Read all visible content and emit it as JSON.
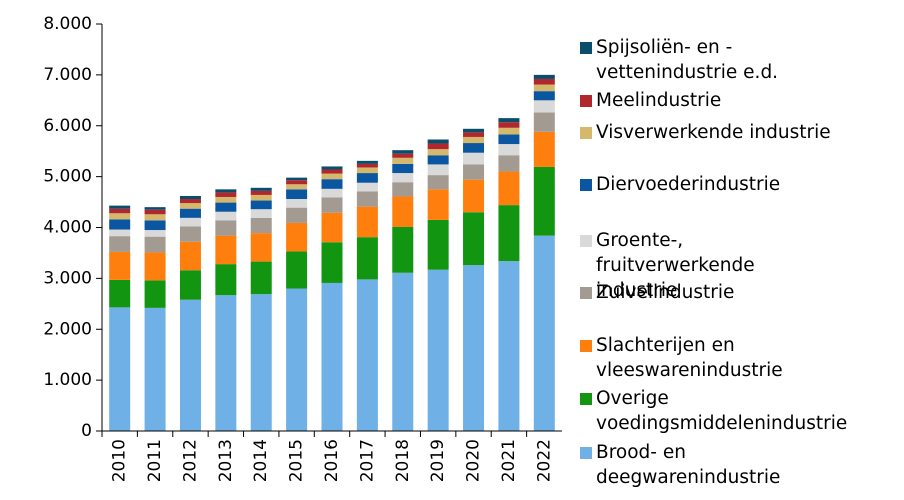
{
  "chart_data": {
    "type": "stacked_bar",
    "categories": [
      "2010",
      "2011",
      "2012",
      "2013",
      "2014",
      "2015",
      "2016",
      "2017",
      "2018",
      "2019",
      "2020",
      "2021",
      "2022"
    ],
    "series": [
      {
        "name": "Brood- en deegwarenindustrie",
        "color": "#6fb0e6",
        "values": [
          2430,
          2420,
          2580,
          2670,
          2690,
          2800,
          2910,
          2980,
          3110,
          3170,
          3260,
          3340,
          3840
        ]
      },
      {
        "name": "Overige voedingsmiddelenindustrie",
        "color": "#129612",
        "values": [
          540,
          540,
          580,
          610,
          640,
          730,
          800,
          830,
          900,
          980,
          1040,
          1100,
          1350
        ]
      },
      {
        "name": "Slachterijen en vleeswarenindustrie",
        "color": "#ff7f0e",
        "values": [
          550,
          550,
          560,
          560,
          560,
          560,
          580,
          600,
          600,
          600,
          640,
          660,
          690
        ]
      },
      {
        "name": "Zuivelindustrie",
        "color": "#a39a92",
        "values": [
          310,
          310,
          300,
          300,
          300,
          300,
          300,
          300,
          280,
          280,
          300,
          320,
          380
        ]
      },
      {
        "name": "Groente-, fruitverwerkende industrie",
        "color": "#d9d9d9",
        "values": [
          130,
          130,
          170,
          170,
          170,
          170,
          170,
          170,
          180,
          210,
          230,
          220,
          240
        ]
      },
      {
        "name": "Diervoederindustrie",
        "color": "#0a56a0",
        "values": [
          200,
          190,
          180,
          180,
          170,
          190,
          190,
          190,
          180,
          180,
          190,
          190,
          180
        ]
      },
      {
        "name": "Visverwerkende industrie",
        "color": "#d5b86c",
        "values": [
          120,
          120,
          110,
          110,
          110,
          100,
          110,
          110,
          120,
          120,
          120,
          130,
          130
        ]
      },
      {
        "name": "Meelindustrie",
        "color": "#b0282e",
        "values": [
          90,
          90,
          80,
          90,
          80,
          80,
          80,
          70,
          80,
          110,
          90,
          110,
          110
        ]
      },
      {
        "name": "Spijsoliën- en -vettenindustrie e.d.",
        "color": "#0b4e6c",
        "values": [
          60,
          50,
          60,
          60,
          60,
          50,
          60,
          60,
          70,
          80,
          70,
          80,
          80
        ]
      }
    ],
    "ylim": [
      0,
      8000
    ],
    "yticks": [
      0,
      {
        "value": 1000,
        "label": "1.000"
      },
      {
        "value": 2000,
        "label": "2.000"
      },
      {
        "value": 3000,
        "label": "3.000"
      },
      {
        "value": 4000,
        "label": "4.000"
      },
      {
        "value": 5000,
        "label": "5.000"
      },
      {
        "value": 6000,
        "label": "6.000"
      },
      {
        "value": 7000,
        "label": "7.000"
      },
      {
        "value": 8000,
        "label": "8.000"
      }
    ],
    "legend": "right"
  }
}
